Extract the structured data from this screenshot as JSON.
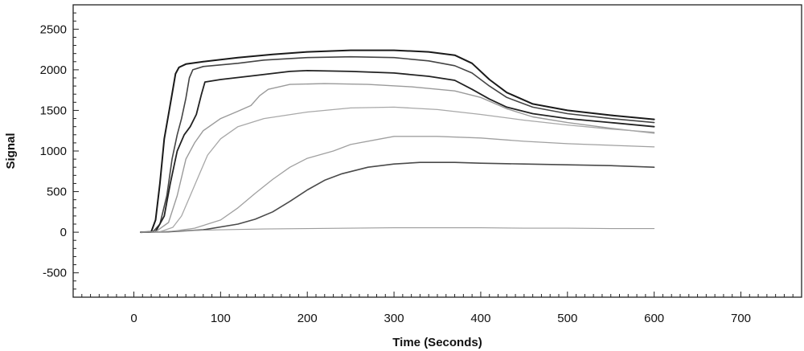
{
  "chart_data": {
    "type": "line",
    "title": "",
    "xlabel": "Time (Seconds)",
    "ylabel": "Signal",
    "xlim": [
      -70,
      770
    ],
    "ylim": [
      -800,
      2800
    ],
    "x_ticks": [
      0,
      100,
      200,
      300,
      400,
      500,
      600,
      700
    ],
    "y_ticks": [
      -500,
      0,
      500,
      1000,
      1500,
      2000,
      2500
    ],
    "grid": false,
    "legend": "none",
    "series": [
      {
        "color": "#1a1a1a",
        "width": 2.0,
        "points": [
          [
            8,
            0
          ],
          [
            20,
            5
          ],
          [
            25,
            150
          ],
          [
            30,
            600
          ],
          [
            35,
            1150
          ],
          [
            40,
            1450
          ],
          [
            44,
            1700
          ],
          [
            48,
            1950
          ],
          [
            52,
            2030
          ],
          [
            60,
            2070
          ],
          [
            80,
            2100
          ],
          [
            120,
            2150
          ],
          [
            160,
            2190
          ],
          [
            200,
            2220
          ],
          [
            250,
            2240
          ],
          [
            300,
            2240
          ],
          [
            340,
            2220
          ],
          [
            370,
            2180
          ],
          [
            390,
            2080
          ],
          [
            410,
            1880
          ],
          [
            430,
            1720
          ],
          [
            460,
            1580
          ],
          [
            500,
            1500
          ],
          [
            550,
            1440
          ],
          [
            600,
            1390
          ]
        ]
      },
      {
        "color": "#444444",
        "width": 1.6,
        "points": [
          [
            8,
            0
          ],
          [
            22,
            5
          ],
          [
            30,
            100
          ],
          [
            38,
            450
          ],
          [
            44,
            900
          ],
          [
            50,
            1200
          ],
          [
            55,
            1400
          ],
          [
            60,
            1650
          ],
          [
            64,
            1900
          ],
          [
            68,
            2000
          ],
          [
            80,
            2040
          ],
          [
            120,
            2080
          ],
          [
            150,
            2120
          ],
          [
            200,
            2150
          ],
          [
            250,
            2160
          ],
          [
            300,
            2150
          ],
          [
            340,
            2110
          ],
          [
            370,
            2050
          ],
          [
            390,
            1960
          ],
          [
            410,
            1800
          ],
          [
            430,
            1660
          ],
          [
            460,
            1540
          ],
          [
            500,
            1460
          ],
          [
            550,
            1400
          ],
          [
            600,
            1350
          ]
        ]
      },
      {
        "color": "#222222",
        "width": 1.8,
        "points": [
          [
            8,
            0
          ],
          [
            25,
            5
          ],
          [
            35,
            200
          ],
          [
            42,
            600
          ],
          [
            50,
            1000
          ],
          [
            58,
            1200
          ],
          [
            65,
            1300
          ],
          [
            72,
            1450
          ],
          [
            78,
            1700
          ],
          [
            82,
            1850
          ],
          [
            100,
            1880
          ],
          [
            140,
            1930
          ],
          [
            180,
            1980
          ],
          [
            200,
            1990
          ],
          [
            250,
            1980
          ],
          [
            300,
            1960
          ],
          [
            340,
            1920
          ],
          [
            370,
            1870
          ],
          [
            390,
            1760
          ],
          [
            410,
            1640
          ],
          [
            430,
            1540
          ],
          [
            460,
            1460
          ],
          [
            500,
            1400
          ],
          [
            550,
            1350
          ],
          [
            600,
            1300
          ]
        ]
      },
      {
        "color": "#9a9a9a",
        "width": 1.4,
        "points": [
          [
            8,
            0
          ],
          [
            25,
            5
          ],
          [
            40,
            120
          ],
          [
            50,
            450
          ],
          [
            60,
            900
          ],
          [
            70,
            1100
          ],
          [
            80,
            1250
          ],
          [
            100,
            1400
          ],
          [
            120,
            1490
          ],
          [
            135,
            1560
          ],
          [
            145,
            1680
          ],
          [
            155,
            1760
          ],
          [
            180,
            1820
          ],
          [
            220,
            1830
          ],
          [
            270,
            1820
          ],
          [
            320,
            1790
          ],
          [
            370,
            1740
          ],
          [
            400,
            1660
          ],
          [
            430,
            1520
          ],
          [
            460,
            1420
          ],
          [
            500,
            1350
          ],
          [
            550,
            1280
          ],
          [
            600,
            1220
          ]
        ]
      },
      {
        "color": "#a8a8a8",
        "width": 1.3,
        "points": [
          [
            8,
            0
          ],
          [
            30,
            5
          ],
          [
            45,
            60
          ],
          [
            55,
            200
          ],
          [
            65,
            450
          ],
          [
            75,
            700
          ],
          [
            85,
            950
          ],
          [
            100,
            1150
          ],
          [
            120,
            1300
          ],
          [
            150,
            1400
          ],
          [
            200,
            1480
          ],
          [
            250,
            1530
          ],
          [
            300,
            1540
          ],
          [
            350,
            1510
          ],
          [
            400,
            1450
          ],
          [
            450,
            1380
          ],
          [
            500,
            1320
          ],
          [
            550,
            1270
          ],
          [
            600,
            1230
          ]
        ]
      },
      {
        "color": "#a0a0a0",
        "width": 1.3,
        "points": [
          [
            8,
            0
          ],
          [
            40,
            5
          ],
          [
            70,
            50
          ],
          [
            100,
            150
          ],
          [
            120,
            300
          ],
          [
            140,
            480
          ],
          [
            160,
            650
          ],
          [
            180,
            800
          ],
          [
            200,
            910
          ],
          [
            230,
            1000
          ],
          [
            250,
            1080
          ],
          [
            280,
            1140
          ],
          [
            300,
            1180
          ],
          [
            350,
            1180
          ],
          [
            400,
            1160
          ],
          [
            450,
            1120
          ],
          [
            500,
            1090
          ],
          [
            550,
            1070
          ],
          [
            600,
            1050
          ]
        ]
      },
      {
        "color": "#4a4a4a",
        "width": 1.6,
        "points": [
          [
            8,
            0
          ],
          [
            40,
            5
          ],
          [
            80,
            30
          ],
          [
            120,
            100
          ],
          [
            140,
            160
          ],
          [
            160,
            250
          ],
          [
            180,
            380
          ],
          [
            200,
            520
          ],
          [
            220,
            640
          ],
          [
            240,
            720
          ],
          [
            270,
            800
          ],
          [
            300,
            840
          ],
          [
            330,
            860
          ],
          [
            370,
            860
          ],
          [
            400,
            850
          ],
          [
            450,
            840
          ],
          [
            500,
            830
          ],
          [
            550,
            820
          ],
          [
            600,
            800
          ]
        ]
      },
      {
        "color": "#9c9c9c",
        "width": 1.1,
        "points": [
          [
            8,
            0
          ],
          [
            30,
            5
          ],
          [
            60,
            20
          ],
          [
            100,
            30
          ],
          [
            150,
            40
          ],
          [
            200,
            45
          ],
          [
            250,
            50
          ],
          [
            300,
            55
          ],
          [
            350,
            55
          ],
          [
            400,
            55
          ],
          [
            450,
            50
          ],
          [
            500,
            50
          ],
          [
            550,
            45
          ],
          [
            600,
            45
          ]
        ]
      }
    ]
  }
}
